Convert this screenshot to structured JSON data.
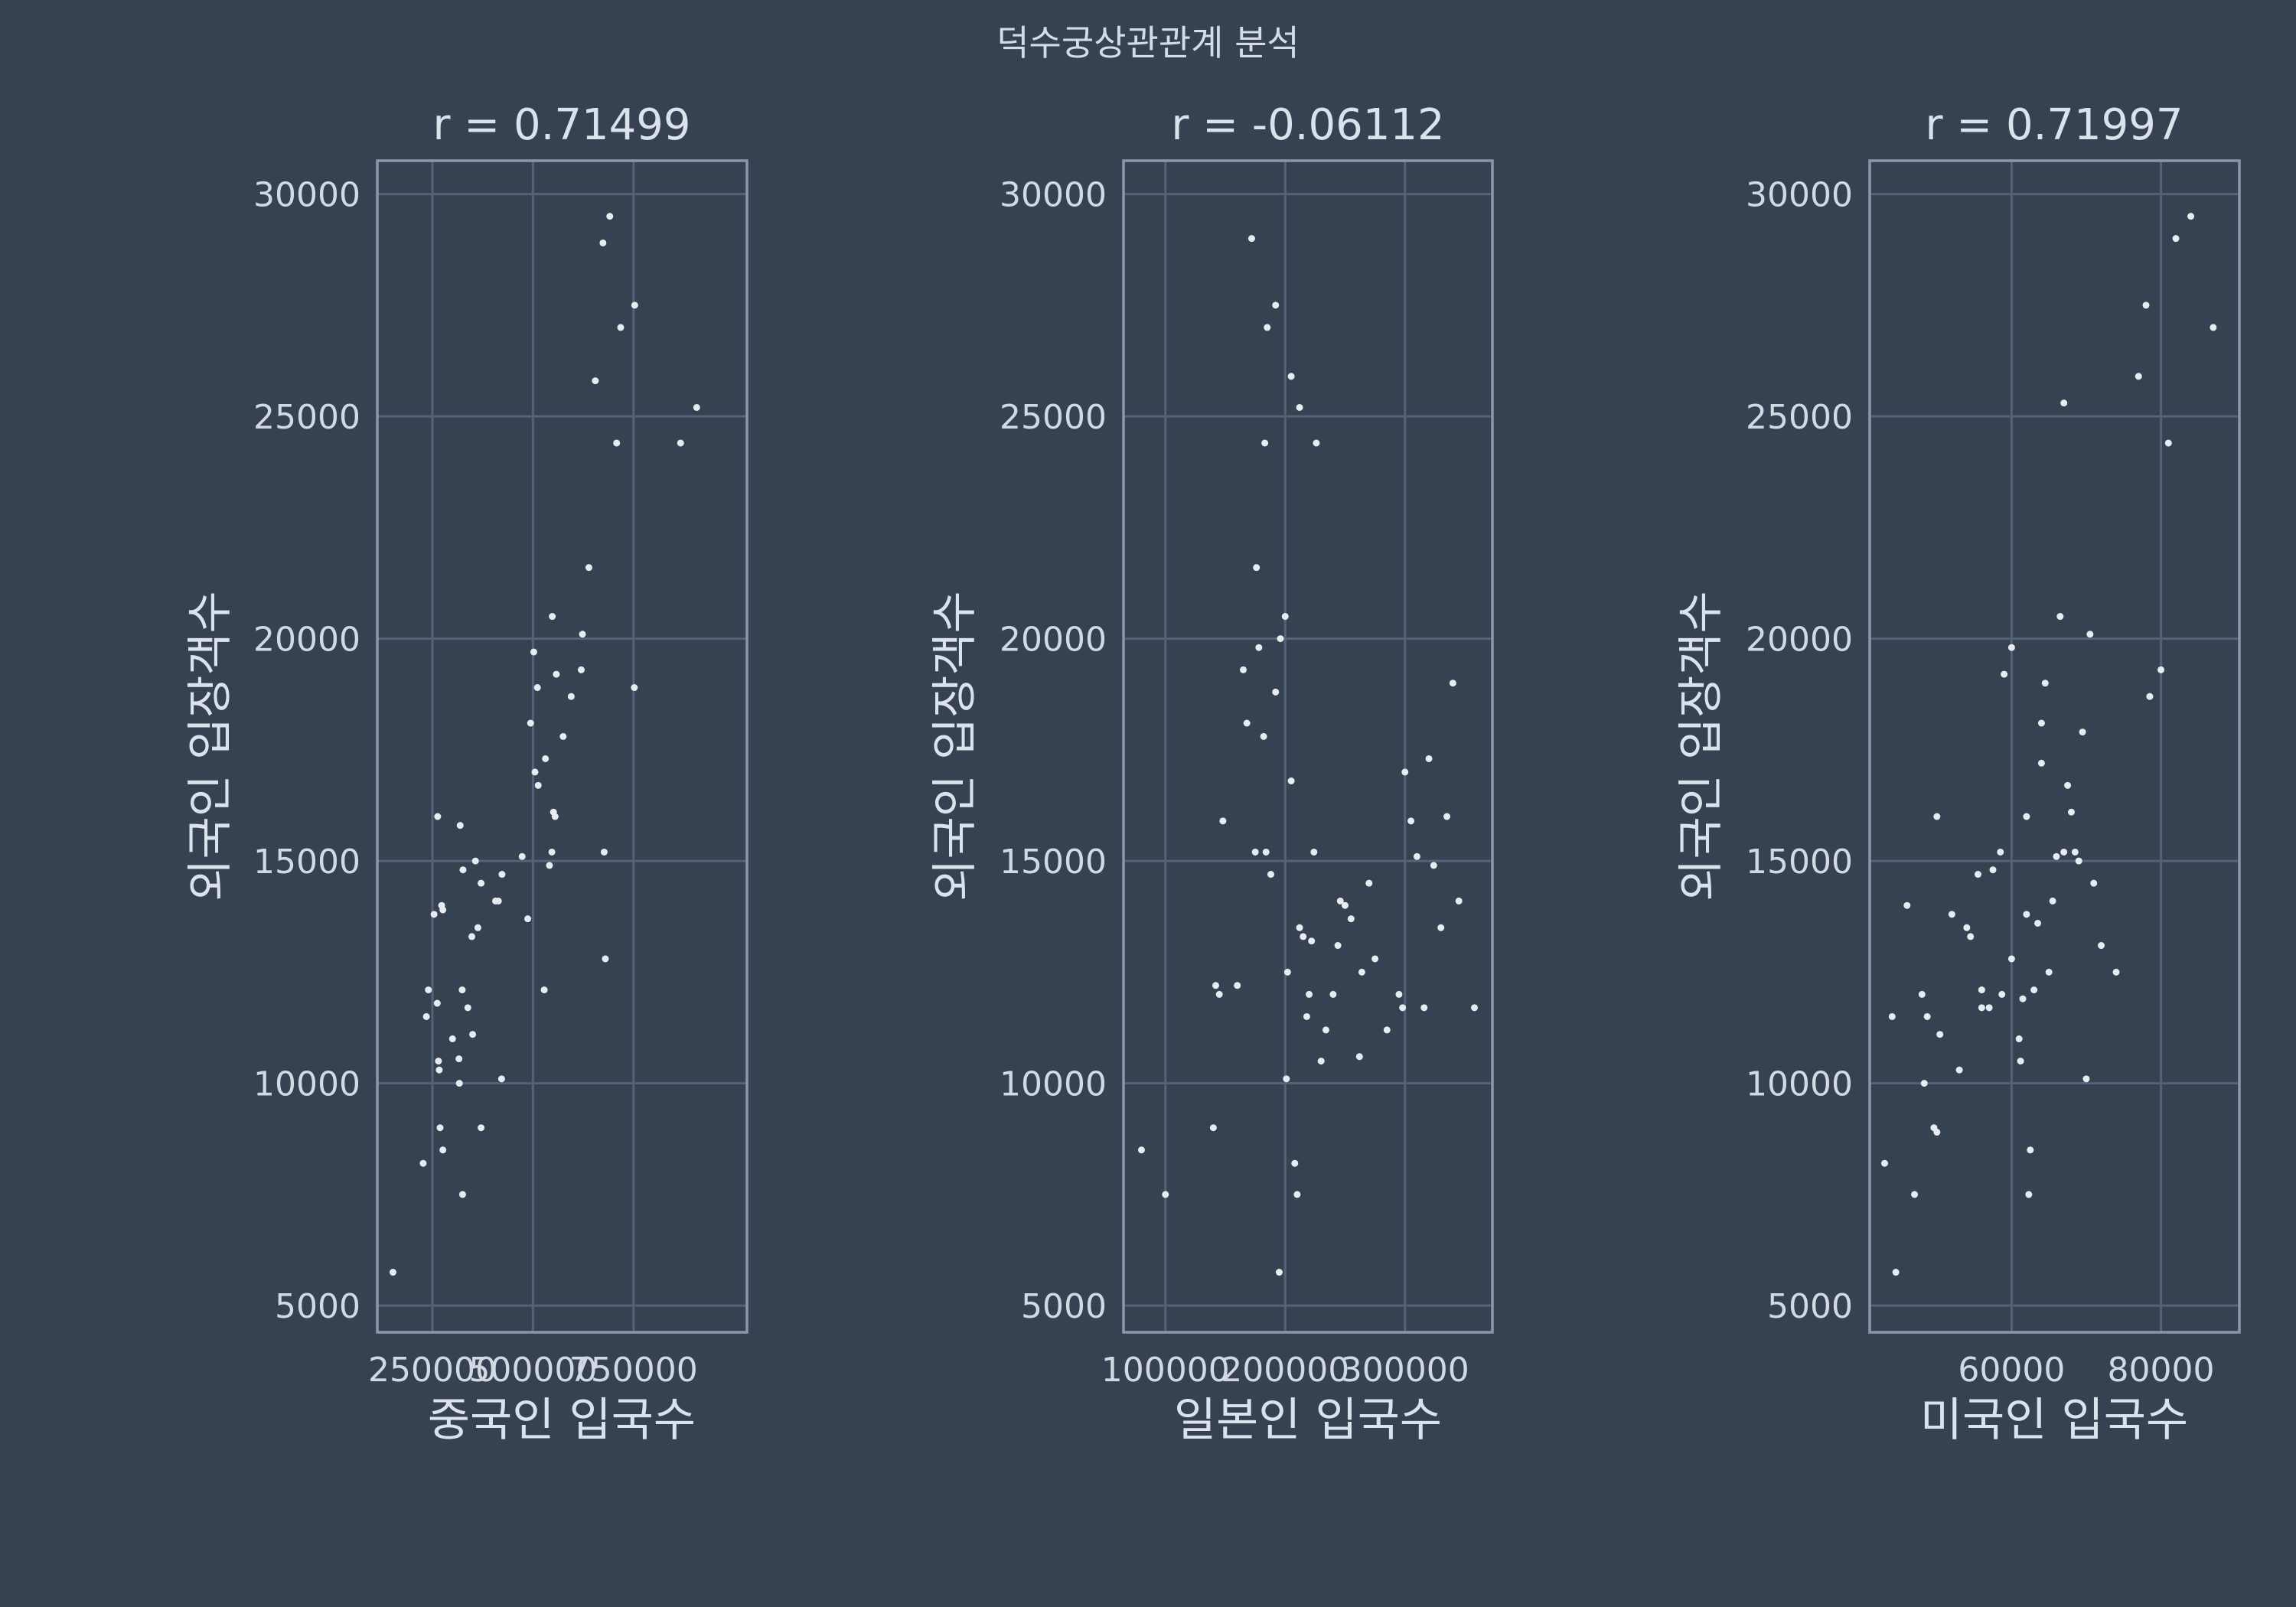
{
  "figure": {
    "suptitle": "덕수궁상관관계 분석",
    "background": "#364152",
    "grid_color": "#56627a",
    "frame_color": "#8b97ad",
    "point_color": "#e8ebf0"
  },
  "chart_data": [
    {
      "type": "scatter",
      "title": "r = 0.71499",
      "xlabel": "중국인 입국수",
      "ylabel": "외국인 입장객수",
      "grid": true,
      "xlim": [
        113000,
        1032000
      ],
      "ylim": [
        4400,
        30750
      ],
      "xticks": [
        250000,
        500000,
        750000
      ],
      "xtick_labels": [
        "250000",
        "500000",
        "750000"
      ],
      "yticks": [
        5000,
        10000,
        15000,
        20000,
        25000,
        30000
      ],
      "ytick_labels": [
        "5000",
        "10000",
        "15000",
        "20000",
        "25000",
        "30000"
      ],
      "x": [
        152000,
        227000,
        276000,
        269000,
        325000,
        317000,
        267000,
        265000,
        235000,
        262000,
        324000,
        338000,
        240000,
        300000,
        371000,
        350000,
        316000,
        348000,
        363000,
        254000,
        273000,
        276000,
        371000,
        407000,
        263000,
        326000,
        357000,
        319000,
        414000,
        423000,
        422000,
        487000,
        473000,
        547000,
        541000,
        505000,
        555000,
        531000,
        511000,
        558000,
        575000,
        595000,
        623000,
        620000,
        551000,
        494000,
        502000,
        548000,
        639000,
        655000,
        708000,
        718000,
        674000,
        691000,
        752000,
        753000,
        867000,
        907000,
        513000,
        677000,
        680000,
        528000
      ],
      "y": [
        5750,
        8200,
        8500,
        9000,
        7500,
        10000,
        10300,
        10500,
        11500,
        11800,
        12100,
        11700,
        12100,
        11000,
        9000,
        11100,
        10550,
        13300,
        13500,
        13800,
        14000,
        13900,
        14500,
        14100,
        16000,
        14800,
        15000,
        15800,
        14100,
        14700,
        10100,
        13700,
        15100,
        15200,
        14900,
        17000,
        16000,
        17300,
        18900,
        19200,
        17800,
        18700,
        20100,
        19300,
        16100,
        18100,
        19700,
        20500,
        21600,
        25800,
        24400,
        27000,
        28900,
        29500,
        18900,
        27500,
        24400,
        25200,
        16700,
        15200,
        12800,
        12100
      ]
    },
    {
      "type": "scatter",
      "title": "r = -0.06112",
      "xlabel": "일본인 입국수",
      "ylabel": "외국인 입장객수",
      "grid": true,
      "xlim": [
        65000,
        373000
      ],
      "ylim": [
        4400,
        30750
      ],
      "xticks": [
        100000,
        200000,
        300000
      ],
      "xtick_labels": [
        "100000",
        "200000",
        "300000"
      ],
      "yticks": [
        5000,
        10000,
        15000,
        20000,
        25000,
        30000
      ],
      "ytick_labels": [
        "5000",
        "10000",
        "15000",
        "20000",
        "25000",
        "30000"
      ],
      "x": [
        80000,
        100000,
        140000,
        142000,
        148000,
        145000,
        160000,
        165000,
        168000,
        175000,
        178000,
        182000,
        184000,
        188000,
        192000,
        195000,
        196000,
        200000,
        201000,
        202000,
        205000,
        208000,
        210000,
        212000,
        215000,
        218000,
        220000,
        222000,
        224000,
        226000,
        230000,
        234000,
        240000,
        244000,
        246000,
        250000,
        255000,
        262000,
        264000,
        270000,
        275000,
        285000,
        295000,
        298000,
        300000,
        305000,
        310000,
        316000,
        320000,
        324000,
        330000,
        335000,
        340000,
        345000,
        358000,
        172000,
        176000,
        183000,
        185000,
        192000,
        205000,
        212000
      ],
      "y": [
        8500,
        7500,
        9000,
        12200,
        15900,
        12000,
        12200,
        19300,
        18100,
        15200,
        19800,
        17800,
        15200,
        14700,
        18800,
        5750,
        20000,
        20500,
        10100,
        12500,
        16800,
        8200,
        7500,
        13500,
        13300,
        11500,
        12000,
        13200,
        15200,
        24400,
        10500,
        11200,
        12000,
        13100,
        14100,
        14000,
        13700,
        10600,
        12500,
        14500,
        12800,
        11200,
        12000,
        11700,
        17000,
        15900,
        15100,
        11700,
        17300,
        14900,
        13500,
        16000,
        19000,
        14100,
        11700,
        29000,
        21600,
        24400,
        27000,
        27500,
        25900,
        25200
      ]
    },
    {
      "type": "scatter",
      "title": "r = 0.71997",
      "xlabel": "미국인 입국수",
      "ylabel": "외국인 입장객수",
      "grid": true,
      "xlim": [
        41000,
        90500
      ],
      "ylim": [
        4400,
        30750
      ],
      "xticks": [
        60000,
        80000
      ],
      "xtick_labels": [
        "60000",
        "80000"
      ],
      "yticks": [
        5000,
        10000,
        15000,
        20000,
        25000,
        30000
      ],
      "ytick_labels": [
        "5000",
        "10000",
        "15000",
        "20000",
        "25000",
        "30000"
      ],
      "x": [
        43000,
        44500,
        47000,
        48300,
        48700,
        49600,
        50000,
        50400,
        53000,
        54000,
        54500,
        55500,
        56000,
        57000,
        57500,
        58500,
        58700,
        59000,
        60000,
        61000,
        61200,
        61500,
        62000,
        62300,
        62500,
        63000,
        63500,
        64000,
        64500,
        65000,
        65500,
        66000,
        66500,
        67000,
        67500,
        68000,
        68500,
        69000,
        69500,
        70000,
        70500,
        71000,
        72000,
        74000,
        77000,
        78000,
        78500,
        80000,
        81000,
        82000,
        84000,
        87000,
        44000,
        46000,
        48000,
        50000,
        52000,
        56000,
        60000,
        62000,
        64000,
        67000
      ],
      "y": [
        8200,
        5750,
        7500,
        10000,
        11500,
        9000,
        8900,
        11100,
        10300,
        13500,
        13300,
        14700,
        12100,
        11700,
        14800,
        15200,
        12000,
        19200,
        12800,
        11000,
        10500,
        11900,
        16000,
        7500,
        8500,
        12100,
        13600,
        18100,
        19000,
        12500,
        14100,
        15100,
        20500,
        15200,
        16700,
        16100,
        15200,
        15000,
        17900,
        10100,
        20100,
        14500,
        13100,
        12500,
        25900,
        27500,
        18700,
        19300,
        24400,
        29000,
        29500,
        27000,
        11500,
        14000,
        12000,
        16000,
        13800,
        11700,
        19800,
        13800,
        17200,
        25300
      ]
    }
  ]
}
